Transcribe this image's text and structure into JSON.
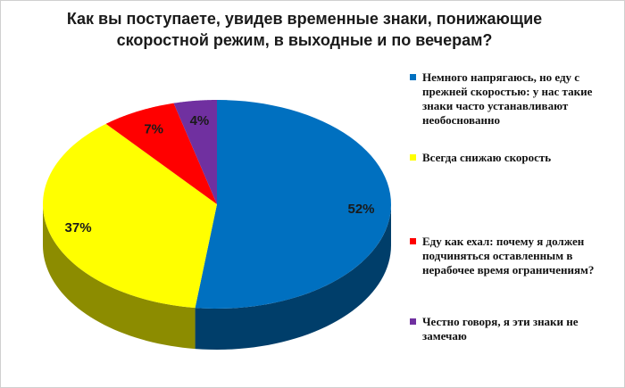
{
  "chart_data": {
    "type": "pie",
    "title": "Как вы поступаете, увидев временные знаки, понижающие скоростной режим, в выходные и по вечерам?",
    "categories": [
      "Немного напрягаюсь,  но еду с прежней скоростью: у нас такие знаки часто устанавливают необоснованно",
      "Всегда снижаю скорость",
      "Еду как ехал: почему я должен подчиняться оставленным в нерабочее время ограничениям?",
      "Честно говоря, я эти знаки не замечаю"
    ],
    "values": [
      52,
      37,
      7,
      4
    ],
    "value_labels": [
      "52%",
      "37%",
      "7%",
      "4%"
    ],
    "colors": [
      "#0070c0",
      "#ffff00",
      "#ff0000",
      "#7030a0"
    ],
    "legend": "right"
  }
}
